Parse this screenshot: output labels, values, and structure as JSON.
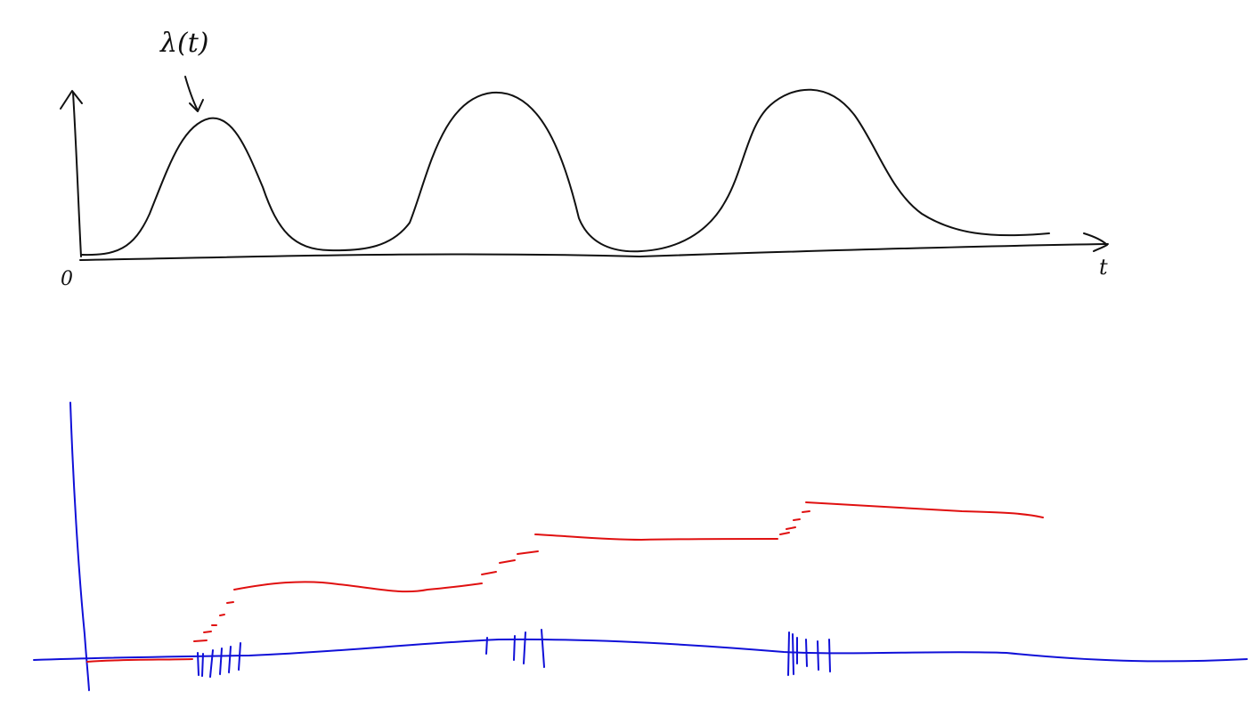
{
  "top_panel": {
    "curve_label": "λ(t)",
    "origin_label": "0",
    "time_axis_label": "t"
  },
  "colors": {
    "ink": "#111111",
    "axis_blue": "#1010d8",
    "staircase_red": "#e01010"
  }
}
